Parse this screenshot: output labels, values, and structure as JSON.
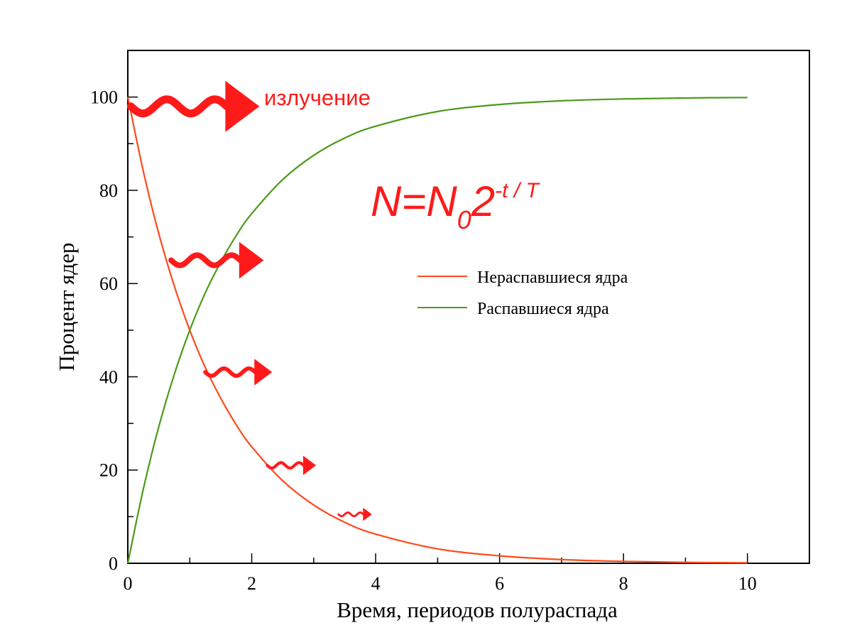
{
  "chart_data": {
    "type": "line",
    "xlabel": "Время, периодов полураспада",
    "ylabel": "Процент ядер",
    "xlim": [
      0,
      11
    ],
    "ylim": [
      0,
      110
    ],
    "x_ticks": [
      0,
      2,
      4,
      6,
      8,
      10
    ],
    "y_ticks": [
      0,
      20,
      40,
      60,
      80,
      100
    ],
    "x_minor_step": 1,
    "y_minor_step": 10,
    "grid": false,
    "legend_position": "center-right",
    "x": [
      0,
      0.25,
      0.5,
      0.75,
      1,
      1.25,
      1.5,
      1.75,
      2,
      2.5,
      3,
      3.5,
      4,
      5,
      6,
      7,
      8,
      9,
      10
    ],
    "series": [
      {
        "name": "Нераспавшиеся ядра",
        "color": "#ff4a1c",
        "values": [
          100,
          84.1,
          70.7,
          59.5,
          50,
          42,
          35.4,
          29.7,
          25,
          17.7,
          12.5,
          8.8,
          6.25,
          3.1,
          1.6,
          0.8,
          0.4,
          0.2,
          0.1
        ]
      },
      {
        "name": "Распавшиеся ядра",
        "color": "#4c9a1a",
        "values": [
          0,
          15.9,
          29.3,
          40.5,
          50,
          58,
          64.6,
          70.3,
          75,
          82.3,
          87.5,
          91.2,
          93.75,
          96.9,
          98.4,
          99.2,
          99.6,
          99.8,
          99.9
        ]
      }
    ],
    "annotations": {
      "radiation_label": "излучение",
      "formula": {
        "base": "N=N",
        "subscript": "0",
        "two": "2",
        "exponent": "-t / T"
      },
      "arrows": [
        {
          "x": 0.05,
          "y": 98,
          "scale": 1.0
        },
        {
          "x": 0.7,
          "y": 65,
          "scale": 0.72
        },
        {
          "x": 1.25,
          "y": 41,
          "scale": 0.52
        },
        {
          "x": 2.25,
          "y": 21,
          "scale": 0.38
        },
        {
          "x": 3.4,
          "y": 10.5,
          "scale": 0.26
        }
      ],
      "color": "#ff1a1a"
    }
  }
}
